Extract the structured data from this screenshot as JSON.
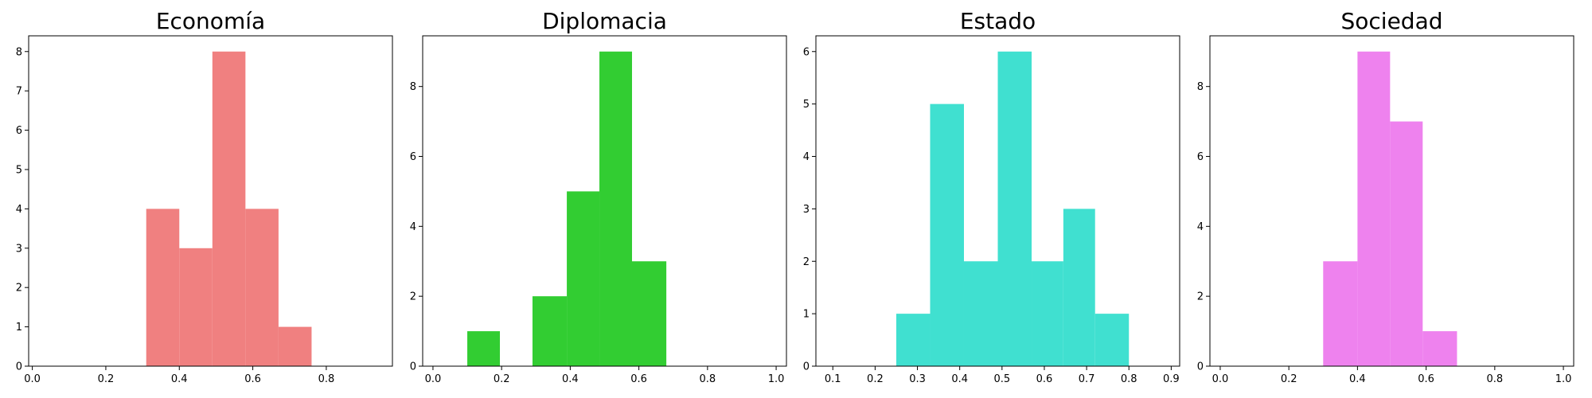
{
  "chart_data": [
    {
      "type": "bar",
      "title": "Economía",
      "color": "#F08080",
      "xlim": [
        -0.01,
        0.98
      ],
      "ylim": [
        0,
        8.4
      ],
      "xticks": [
        0.0,
        0.2,
        0.4,
        0.6,
        0.8
      ],
      "xtick_labels": [
        "0.0",
        "0.2",
        "0.4",
        "0.6",
        "0.8"
      ],
      "yticks": [
        0,
        1,
        2,
        3,
        4,
        5,
        6,
        7,
        8
      ],
      "ytick_labels": [
        "0",
        "1",
        "2",
        "3",
        "4",
        "5",
        "6",
        "7",
        "8"
      ],
      "bins": [
        {
          "x0": 0.31,
          "x1": 0.4,
          "count": 4
        },
        {
          "x0": 0.4,
          "x1": 0.49,
          "count": 3
        },
        {
          "x0": 0.49,
          "x1": 0.58,
          "count": 8
        },
        {
          "x0": 0.58,
          "x1": 0.67,
          "count": 4
        },
        {
          "x0": 0.67,
          "x1": 0.76,
          "count": 1
        }
      ]
    },
    {
      "type": "bar",
      "title": "Diplomacia",
      "color": "#32CD32",
      "xlim": [
        -0.03,
        1.03
      ],
      "ylim": [
        0,
        9.45
      ],
      "xticks": [
        0.0,
        0.2,
        0.4,
        0.6,
        0.8,
        1.0
      ],
      "xtick_labels": [
        "0.0",
        "0.2",
        "0.4",
        "0.6",
        "0.8",
        "1.0"
      ],
      "yticks": [
        0,
        2,
        4,
        6,
        8
      ],
      "ytick_labels": [
        "0",
        "2",
        "4",
        "6",
        "8"
      ],
      "bins": [
        {
          "x0": 0.1,
          "x1": 0.195,
          "count": 1
        },
        {
          "x0": 0.29,
          "x1": 0.39,
          "count": 2
        },
        {
          "x0": 0.39,
          "x1": 0.485,
          "count": 5
        },
        {
          "x0": 0.485,
          "x1": 0.58,
          "count": 9
        },
        {
          "x0": 0.58,
          "x1": 0.68,
          "count": 3
        }
      ]
    },
    {
      "type": "bar",
      "title": "Estado",
      "color": "#40E0D0",
      "xlim": [
        0.06,
        0.92
      ],
      "ylim": [
        0,
        6.3
      ],
      "xticks": [
        0.1,
        0.2,
        0.3,
        0.4,
        0.5,
        0.6,
        0.7,
        0.8,
        0.9
      ],
      "xtick_labels": [
        "0.1",
        "0.2",
        "0.3",
        "0.4",
        "0.5",
        "0.6",
        "0.7",
        "0.8",
        "0.9"
      ],
      "yticks": [
        0,
        1,
        2,
        3,
        4,
        5,
        6
      ],
      "ytick_labels": [
        "0",
        "1",
        "2",
        "3",
        "4",
        "5",
        "6"
      ],
      "bins": [
        {
          "x0": 0.25,
          "x1": 0.33,
          "count": 1
        },
        {
          "x0": 0.33,
          "x1": 0.41,
          "count": 5
        },
        {
          "x0": 0.41,
          "x1": 0.49,
          "count": 2
        },
        {
          "x0": 0.49,
          "x1": 0.57,
          "count": 6
        },
        {
          "x0": 0.57,
          "x1": 0.645,
          "count": 2
        },
        {
          "x0": 0.645,
          "x1": 0.72,
          "count": 3
        },
        {
          "x0": 0.72,
          "x1": 0.8,
          "count": 1
        }
      ]
    },
    {
      "type": "bar",
      "title": "Sociedad",
      "color": "#EE82EE",
      "xlim": [
        -0.03,
        1.03
      ],
      "ylim": [
        0,
        9.45
      ],
      "xticks": [
        0.0,
        0.2,
        0.4,
        0.6,
        0.8,
        1.0
      ],
      "xtick_labels": [
        "0.0",
        "0.2",
        "0.4",
        "0.6",
        "0.8",
        "1.0"
      ],
      "yticks": [
        0,
        2,
        4,
        6,
        8
      ],
      "ytick_labels": [
        "0",
        "2",
        "4",
        "6",
        "8"
      ],
      "bins": [
        {
          "x0": 0.3,
          "x1": 0.4,
          "count": 3
        },
        {
          "x0": 0.4,
          "x1": 0.495,
          "count": 9
        },
        {
          "x0": 0.495,
          "x1": 0.59,
          "count": 7
        },
        {
          "x0": 0.59,
          "x1": 0.69,
          "count": 1
        }
      ]
    }
  ]
}
